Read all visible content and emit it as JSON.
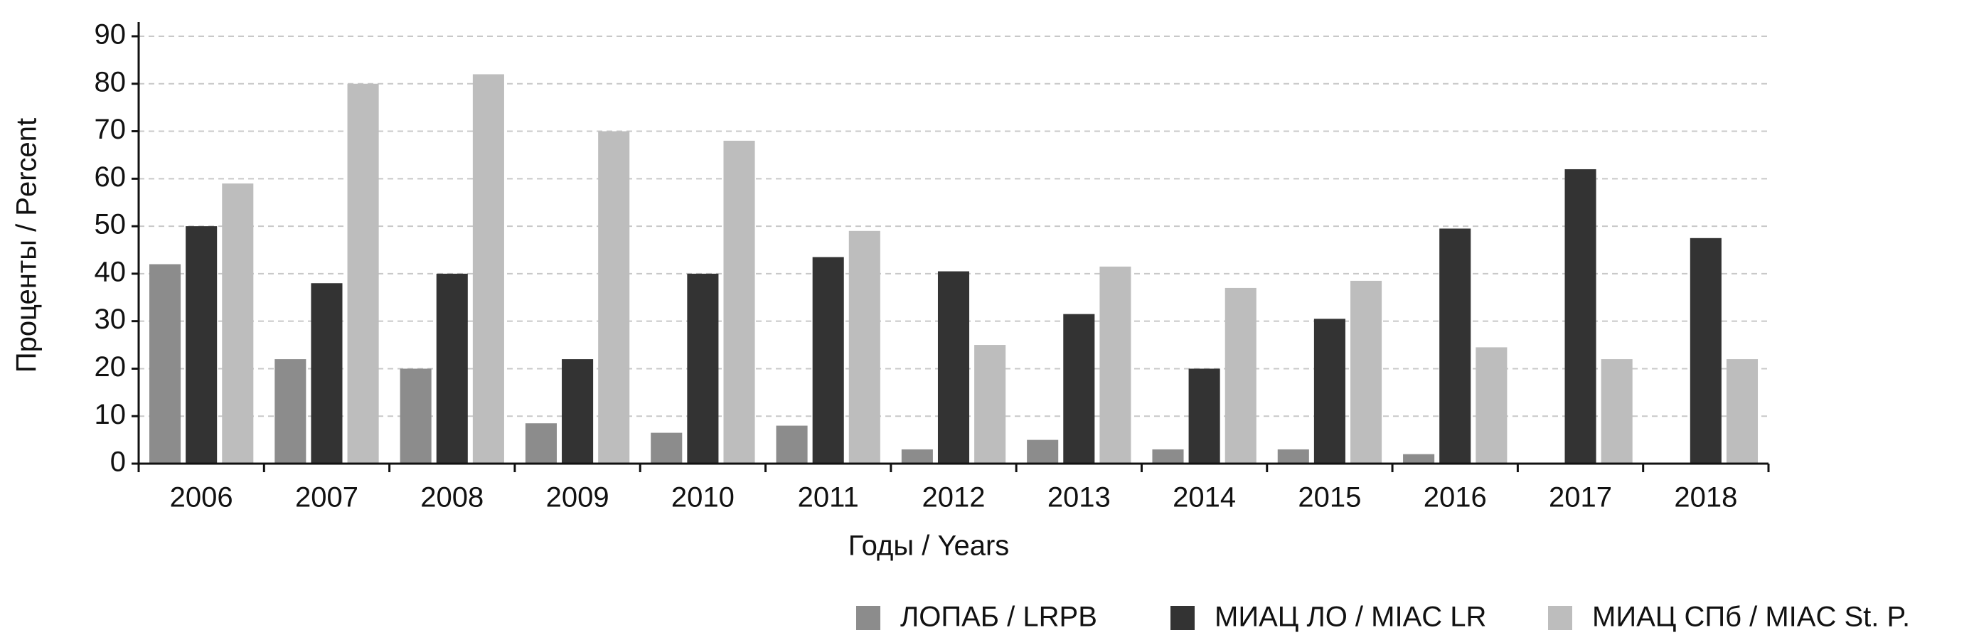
{
  "chart_data": {
    "type": "bar",
    "y_label": "Проценты / Percent",
    "x_label": "Годы / Years",
    "categories": [
      "2006",
      "2007",
      "2008",
      "2009",
      "2010",
      "2011",
      "2012",
      "2013",
      "2014",
      "2015",
      "2016",
      "2017",
      "2018"
    ],
    "series": [
      {
        "name": "ЛОПАБ / LRPB",
        "color": "#8c8c8c",
        "values": [
          42,
          22,
          20,
          8.5,
          6.5,
          8,
          3,
          5,
          3,
          3,
          2,
          null,
          null
        ]
      },
      {
        "name": "МИАЦ ЛО / MIAC LR",
        "color": "#333333",
        "values": [
          50,
          38,
          40,
          22,
          40,
          43.5,
          40.5,
          31.5,
          20,
          30.5,
          49.5,
          62,
          47.5
        ]
      },
      {
        "name": "МИАЦ СПб / MIAC St. P.",
        "color": "#bdbdbd",
        "values": [
          59,
          80,
          82,
          70,
          68,
          49,
          25,
          41.5,
          37,
          38.5,
          24.5,
          22,
          22
        ]
      }
    ],
    "ylim": [
      0,
      90
    ],
    "yticks": [
      0,
      10,
      20,
      30,
      40,
      50,
      60,
      70,
      80,
      90
    ],
    "grid": true
  }
}
